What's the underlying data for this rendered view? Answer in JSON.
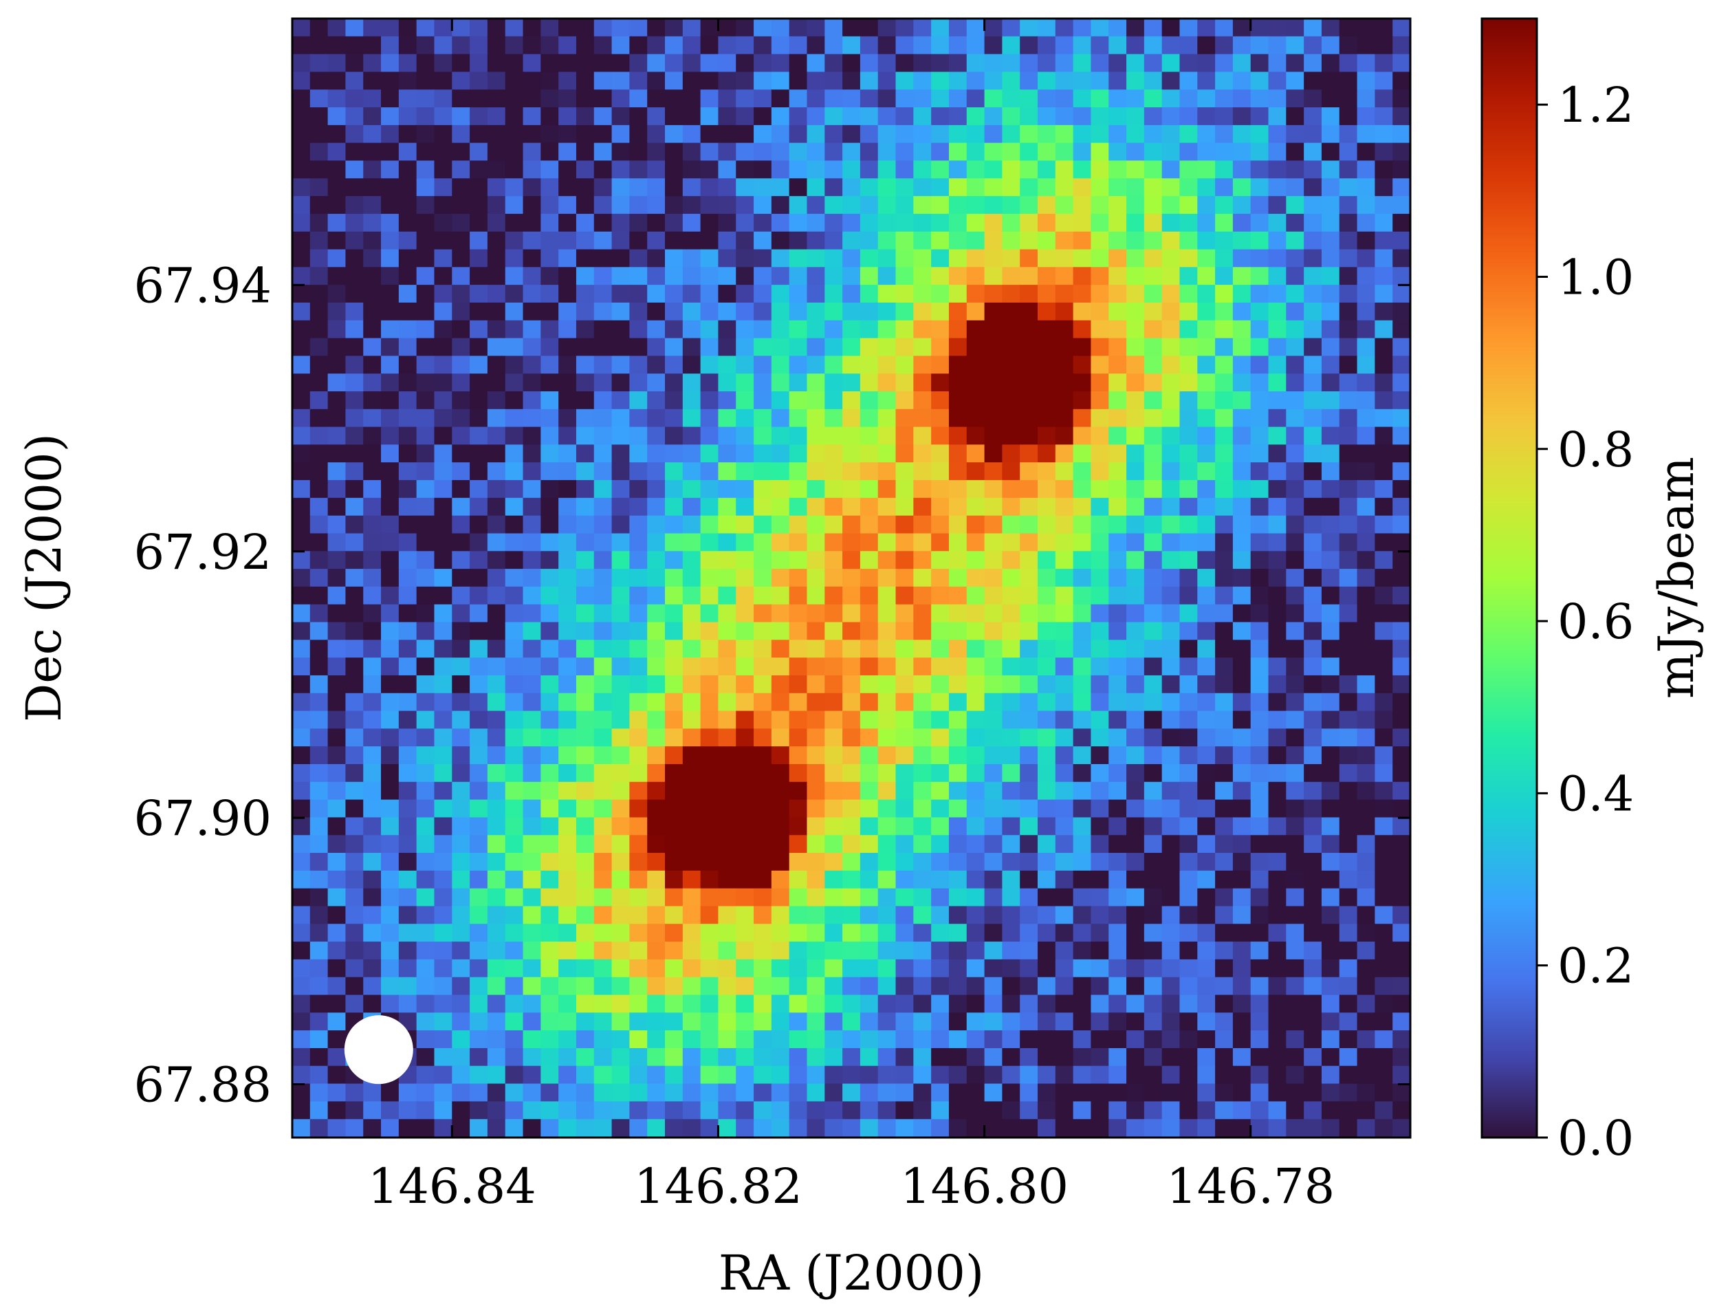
{
  "chart_data": {
    "type": "heatmap",
    "title": "",
    "xlabel": "RA (J2000)",
    "ylabel": "Dec (J2000)",
    "x_ticks": [
      146.84,
      146.82,
      146.8,
      146.78
    ],
    "x_tick_labels": [
      "146.84",
      "146.82",
      "146.80",
      "146.78"
    ],
    "y_ticks": [
      67.88,
      67.9,
      67.92,
      67.94
    ],
    "y_tick_labels": [
      "67.88",
      "67.90",
      "67.92",
      "67.94"
    ],
    "xlim": [
      146.852,
      146.768
    ],
    "ylim": [
      67.876,
      67.96
    ],
    "x_axis_inverted": true,
    "colorbar": {
      "label": "mJy/beam",
      "range": [
        0.0,
        1.3
      ],
      "ticks": [
        0.0,
        0.2,
        0.4,
        0.6,
        0.8,
        1.0,
        1.2
      ],
      "tick_labels": [
        "0.0",
        "0.2",
        "0.4",
        "0.6",
        "0.8",
        "1.0",
        "1.2"
      ],
      "colormap": "turbo",
      "position": "right"
    },
    "sources": [
      {
        "ra": 146.7975,
        "dec": 67.933,
        "peak_mJy_per_beam": 1.3
      },
      {
        "ra": 146.8195,
        "dec": 67.9003,
        "peak_mJy_per_beam": 1.3
      }
    ],
    "beam": {
      "ra": 146.8455,
      "dec": 67.8826,
      "color": "#ffffff",
      "position": "bottom-left"
    },
    "grid": false,
    "background_color": "#30123b"
  }
}
